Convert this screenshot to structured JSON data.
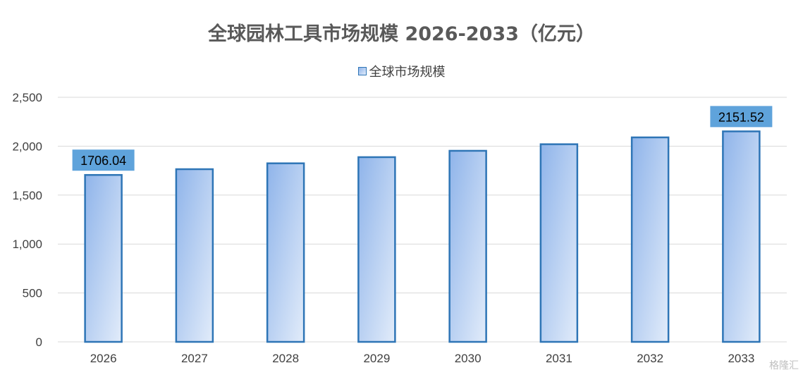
{
  "chart_data": {
    "type": "bar",
    "title": "全球园林工具市场规模 2026-2033（亿元）",
    "categories": [
      "2026",
      "2027",
      "2028",
      "2029",
      "2030",
      "2031",
      "2032",
      "2033"
    ],
    "series": [
      {
        "name": "全球市场规模",
        "values": [
          1706.04,
          1765,
          1825,
          1888,
          1953,
          2020,
          2090,
          2151.52
        ]
      }
    ],
    "data_labels": [
      {
        "category": "2026",
        "text": "1706.04"
      },
      {
        "category": "2033",
        "text": "2151.52"
      }
    ],
    "yticks": [
      "0",
      "500",
      "1,000",
      "1,500",
      "2,000",
      "2,500"
    ],
    "ylim": [
      0,
      2500
    ],
    "grid": true,
    "legend": "top-center",
    "colors": {
      "bar_top": "#8FB4EA",
      "bar_bottom": "#E2ECFA",
      "bar_border": "#2E75B6",
      "label_bg": "#5FA3DB",
      "grid": "#D9D9D9"
    }
  },
  "watermark": "格隆汇"
}
